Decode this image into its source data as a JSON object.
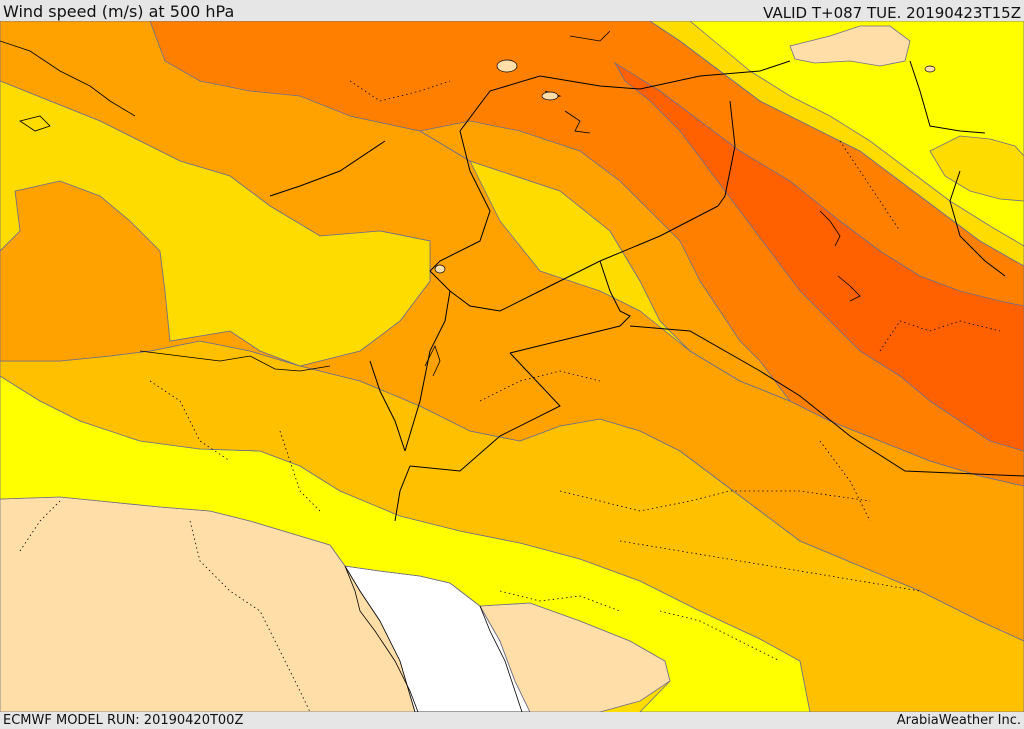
{
  "header": {
    "title": "Wind speed (m/s) at 500 hPa",
    "valid_time": "VALID T+087 TUE. 20190423T15Z"
  },
  "footer": {
    "model_run": "ECMWF MODEL RUN: 20190420T00Z",
    "credit": "ArabiaWeather Inc."
  },
  "map": {
    "field": "Wind speed at 500 hPa",
    "palette": {
      "sea_white": "#ffffff",
      "very_low": "#ffdea8",
      "low": "#ffff00",
      "medium_low": "#ffdc00",
      "medium": "#ffc000",
      "medium_high": "#ffa200",
      "high": "#ff8000",
      "very_high": "#ff6000",
      "contour_line": "#6e6e8a",
      "border_line": "#000000"
    }
  }
}
